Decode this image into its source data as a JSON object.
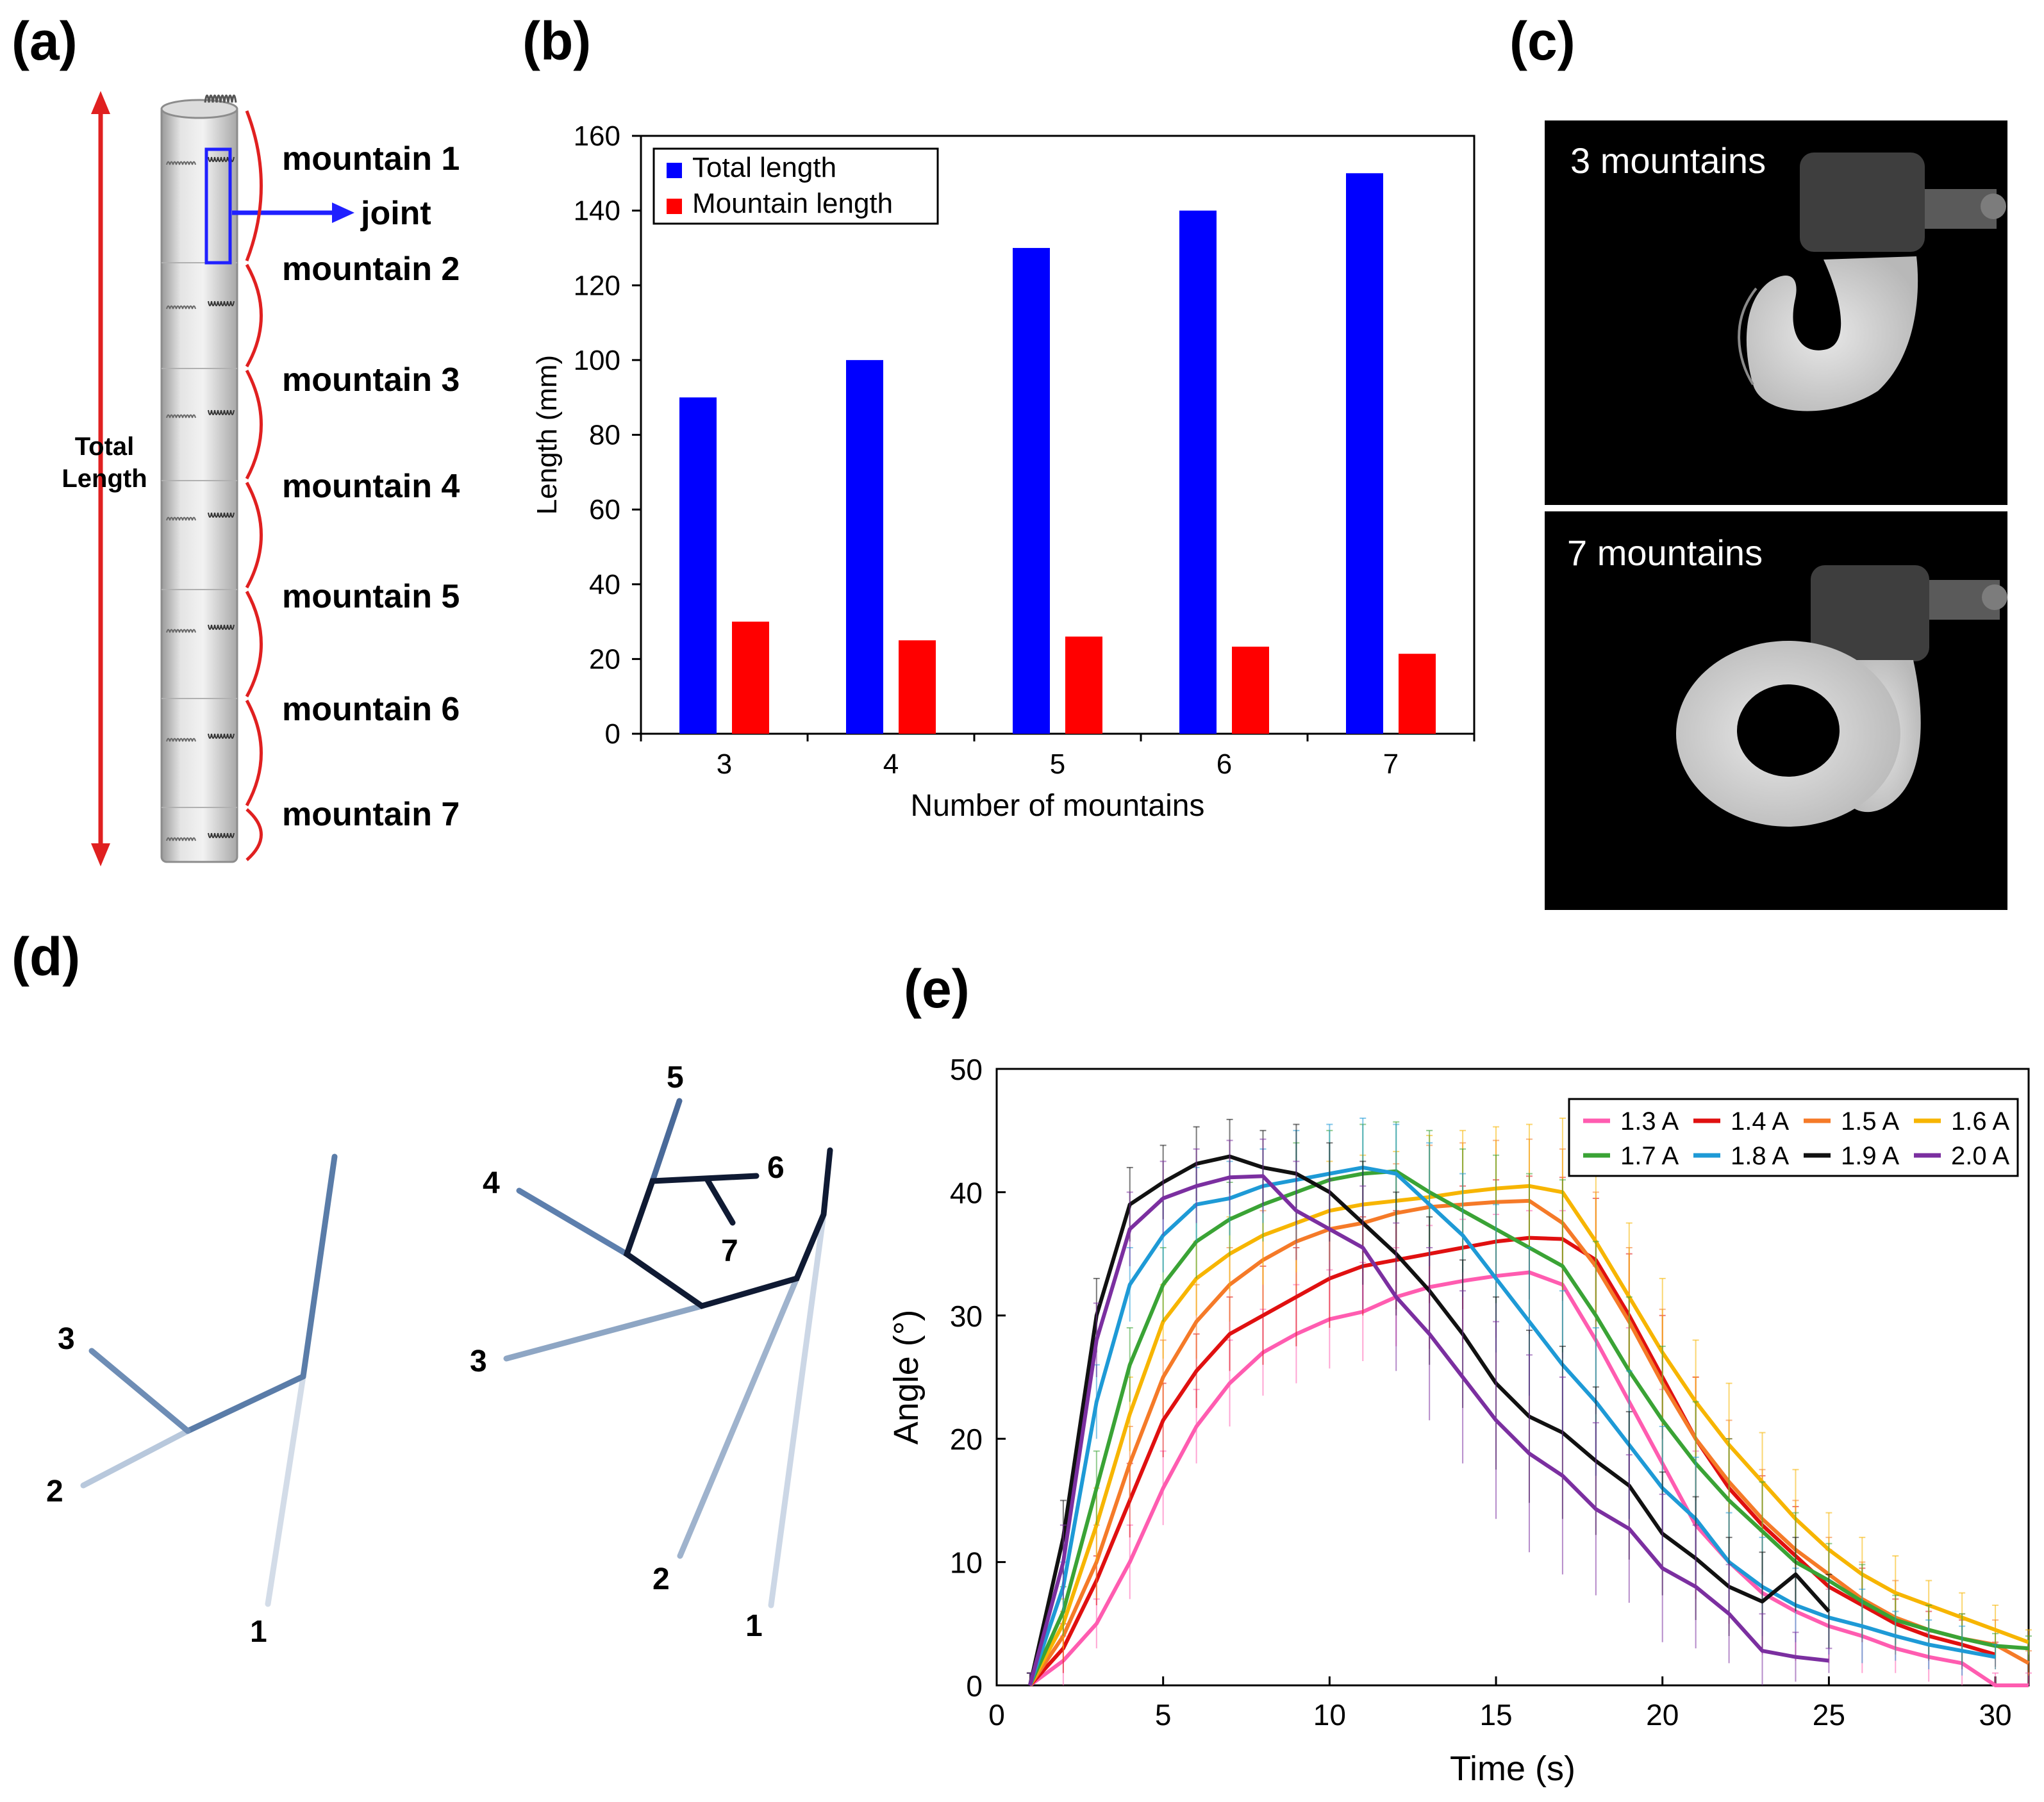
{
  "panels": {
    "a": "(a)",
    "b": "(b)",
    "c": "(c)",
    "d": "(d)",
    "e": "(e)"
  },
  "colors": {
    "total": "#0000ff",
    "mountain": "#ff0000",
    "arrow_red": "#e02020",
    "arrow_blue": "#2020ff"
  },
  "panel_a": {
    "total_label_1": "Total",
    "total_label_2": "Length",
    "joint": "joint",
    "mountains": [
      "mountain 1",
      "mountain 2",
      "mountain 3",
      "mountain 4",
      "mountain 5",
      "mountain 6",
      "mountain 7"
    ]
  },
  "panel_c": {
    "top_caption": "3 mountains",
    "bottom_caption": "7 mountains"
  },
  "panel_d": {
    "left_labels": [
      "1",
      "2",
      "3"
    ],
    "right_labels": [
      "1",
      "2",
      "3",
      "4",
      "5",
      "6",
      "7"
    ]
  },
  "chart_data": [
    {
      "id": "b",
      "type": "bar",
      "title": "",
      "xlabel": "Number of mountains",
      "ylabel": "Length (mm)",
      "categories": [
        "3",
        "4",
        "5",
        "6",
        "7"
      ],
      "ylim": [
        0,
        160
      ],
      "yticks": [
        0,
        20,
        40,
        60,
        80,
        100,
        120,
        140,
        160
      ],
      "series": [
        {
          "name": "Total length",
          "color": "#0000ff",
          "values": [
            90,
            100,
            130,
            140,
            150
          ]
        },
        {
          "name": "Mountain length",
          "color": "#ff0000",
          "values": [
            30,
            25,
            26,
            23.3,
            21.4
          ]
        }
      ],
      "legend": "top-left"
    },
    {
      "id": "e",
      "type": "line",
      "title": "",
      "xlabel": "Time (s)",
      "ylabel": "Angle (°)",
      "xlim": [
        0,
        31
      ],
      "ylim": [
        0,
        50
      ],
      "xticks": [
        0,
        5,
        10,
        15,
        20,
        25,
        30
      ],
      "yticks": [
        0,
        10,
        20,
        30,
        40,
        50
      ],
      "legend": "top-right",
      "series": [
        {
          "name": "1.3 A",
          "color": "#ff5cb0",
          "x": [
            1,
            2,
            3,
            4,
            5,
            6,
            7,
            8,
            9,
            10,
            11,
            12,
            13,
            14,
            15,
            16,
            17,
            18,
            19,
            20,
            21,
            22,
            23,
            24,
            25,
            26,
            27,
            28,
            29,
            30,
            31
          ],
          "y": [
            0,
            2,
            5,
            10,
            16,
            21,
            24.5,
            27,
            28.5,
            29.7,
            30.3,
            31.5,
            32.3,
            32.8,
            33.2,
            33.5,
            32.5,
            28,
            23,
            18,
            13,
            10,
            7.5,
            6,
            4.8,
            4,
            3,
            2.3,
            1.8,
            0,
            0
          ],
          "err": [
            1,
            2,
            2,
            3,
            3,
            3,
            3.5,
            3.5,
            4,
            4,
            4,
            4,
            5,
            5,
            5,
            5,
            6,
            6,
            6,
            6,
            6,
            5,
            5,
            4,
            3,
            3,
            2,
            2,
            2,
            1,
            1
          ]
        },
        {
          "name": "1.4 A",
          "color": "#e01010",
          "x": [
            1,
            2,
            3,
            4,
            5,
            6,
            7,
            8,
            9,
            10,
            11,
            12,
            13,
            14,
            15,
            16,
            17,
            18,
            19,
            20,
            21,
            22,
            23,
            24,
            25,
            26,
            27,
            28,
            29,
            30
          ],
          "y": [
            0,
            3,
            8.5,
            15,
            21.5,
            25.5,
            28.5,
            30,
            31.5,
            33,
            34,
            34.5,
            35,
            35.5,
            36,
            36.3,
            36.2,
            34.5,
            30,
            25,
            20,
            16,
            13,
            10.5,
            8,
            6.5,
            5,
            4,
            3.3,
            2.5
          ],
          "err": [
            1,
            2,
            2,
            3,
            3,
            3,
            3,
            4,
            4,
            4,
            4,
            4,
            4,
            5,
            5,
            5,
            5,
            5,
            5,
            5,
            5,
            4,
            4,
            4,
            3,
            3,
            2,
            2,
            2,
            1
          ]
        },
        {
          "name": "1.5 A",
          "color": "#f57a28",
          "x": [
            1,
            2,
            3,
            4,
            5,
            6,
            7,
            8,
            9,
            10,
            11,
            12,
            13,
            14,
            15,
            16,
            17,
            18,
            19,
            20,
            21,
            22,
            23,
            24,
            25,
            26,
            27,
            28,
            29,
            30,
            31
          ],
          "y": [
            0,
            4,
            10,
            18,
            25,
            29.5,
            32.5,
            34.5,
            36,
            37,
            37.5,
            38.3,
            38.8,
            39,
            39.2,
            39.3,
            37.5,
            34,
            29.5,
            24.5,
            20,
            16.5,
            13.5,
            11,
            9,
            7,
            5.5,
            4.5,
            3.8,
            3.3,
            1.8
          ],
          "err": [
            1,
            2,
            3,
            3,
            3,
            3,
            3,
            4,
            4,
            4,
            4,
            4,
            5,
            5,
            5,
            5,
            6,
            6,
            6,
            6,
            5,
            5,
            4,
            4,
            3,
            3,
            3,
            2,
            2,
            2,
            1
          ]
        },
        {
          "name": "1.6 A",
          "color": "#f7b500",
          "x": [
            1,
            2,
            3,
            4,
            5,
            6,
            7,
            8,
            9,
            10,
            11,
            12,
            13,
            14,
            15,
            16,
            17,
            18,
            19,
            20,
            21,
            22,
            23,
            24,
            25,
            26,
            27,
            28,
            29,
            30,
            31
          ],
          "y": [
            0,
            5,
            13,
            22,
            29.5,
            33,
            35,
            36.5,
            37.5,
            38.5,
            39,
            39.3,
            39.6,
            40,
            40.3,
            40.5,
            40,
            36,
            31.5,
            27,
            23,
            19.5,
            16.5,
            13.5,
            11,
            9,
            7.5,
            6.5,
            5.5,
            4.5,
            3.5
          ],
          "err": [
            1,
            2,
            3,
            3,
            3,
            3,
            3,
            4,
            4,
            4,
            4,
            4,
            5,
            5,
            5,
            5,
            6,
            6,
            6,
            6,
            5,
            5,
            4,
            4,
            3,
            3,
            3,
            2,
            2,
            2,
            1
          ]
        },
        {
          "name": "1.7 A",
          "color": "#3aa335",
          "x": [
            1,
            2,
            3,
            4,
            5,
            6,
            7,
            8,
            9,
            10,
            11,
            12,
            13,
            14,
            15,
            16,
            17,
            18,
            19,
            20,
            21,
            22,
            23,
            24,
            25,
            26,
            27,
            28,
            29,
            30,
            31
          ],
          "y": [
            0,
            6,
            16,
            26,
            32.5,
            36,
            37.8,
            39,
            40,
            41,
            41.5,
            41.7,
            40,
            38.5,
            37,
            35.5,
            34,
            30,
            25.5,
            21.5,
            18,
            15,
            12.5,
            10,
            8.5,
            6.8,
            5.3,
            4.5,
            3.8,
            3.2,
            3
          ],
          "err": [
            1,
            2,
            3,
            3,
            3,
            3,
            3,
            3,
            4,
            4,
            4,
            4,
            5,
            5,
            6,
            6,
            7,
            6,
            6,
            6,
            5,
            5,
            4,
            4,
            3,
            3,
            2,
            2,
            2,
            1,
            1
          ]
        },
        {
          "name": "1.8 A",
          "color": "#1e9ad6",
          "x": [
            1,
            2,
            3,
            4,
            5,
            6,
            7,
            8,
            9,
            10,
            11,
            12,
            13,
            14,
            15,
            16,
            17,
            18,
            19,
            20,
            21,
            22,
            23,
            24,
            25,
            26,
            27,
            28,
            29,
            30
          ],
          "y": [
            0,
            8,
            23,
            32.5,
            36.5,
            39,
            39.5,
            40.5,
            41,
            41.5,
            42,
            41.5,
            39,
            36.5,
            33,
            29.5,
            26,
            23,
            19.5,
            16,
            13.5,
            10,
            8,
            6.5,
            5.5,
            4.8,
            4,
            3.3,
            2.8,
            2.3
          ],
          "err": [
            1,
            2,
            3,
            3,
            3,
            3,
            3,
            3,
            4,
            4,
            4,
            4,
            5,
            5,
            6,
            6,
            6,
            6,
            6,
            5,
            5,
            4,
            4,
            3,
            3,
            3,
            2,
            2,
            2,
            1
          ]
        },
        {
          "name": "1.9 A",
          "color": "#111111",
          "x": [
            1,
            2,
            3,
            4,
            5,
            6,
            7,
            8,
            9,
            10,
            11,
            12,
            13,
            14,
            15,
            16,
            17,
            18,
            19,
            20,
            21,
            22,
            23,
            24,
            25
          ],
          "y": [
            0,
            12,
            30,
            39,
            40.8,
            42.3,
            42.9,
            42,
            41.5,
            40,
            37.5,
            35,
            32,
            28.5,
            24.5,
            21.8,
            20.5,
            18.2,
            16.2,
            12.3,
            10.3,
            8,
            6.8,
            9,
            6
          ],
          "err": [
            1,
            3,
            3,
            3,
            3,
            3,
            3,
            3,
            4,
            4,
            5,
            5,
            6,
            6,
            7,
            7,
            7,
            6,
            6,
            5,
            5,
            4,
            4,
            3,
            3
          ]
        },
        {
          "name": "2.0 A",
          "color": "#7b2fa0",
          "x": [
            1,
            2,
            3,
            4,
            5,
            6,
            7,
            8,
            9,
            10,
            11,
            12,
            13,
            14,
            15,
            16,
            17,
            18,
            19,
            20,
            21,
            22,
            23,
            24,
            25
          ],
          "y": [
            0,
            10,
            28,
            37,
            39.5,
            40.5,
            41.2,
            41.3,
            38.5,
            37,
            35.5,
            31.5,
            28.5,
            25,
            21.5,
            18.8,
            17,
            14.3,
            12.7,
            9.5,
            8,
            5.8,
            2.8,
            2.3,
            2
          ],
          "err": [
            1,
            3,
            3,
            3,
            3,
            3,
            3,
            3,
            4,
            4,
            5,
            6,
            7,
            7,
            8,
            8,
            8,
            7,
            6,
            6,
            5,
            4,
            3,
            2,
            1
          ]
        }
      ]
    }
  ]
}
